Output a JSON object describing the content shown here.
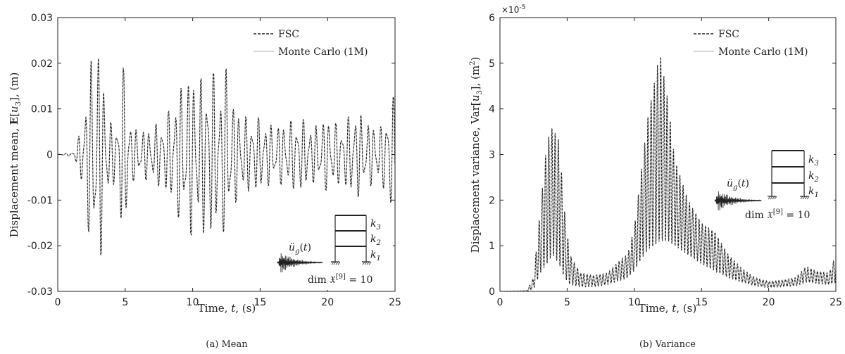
{
  "chart_data": [
    {
      "type": "line",
      "panel": "a",
      "caption": "(a) Mean",
      "xlabel": "Time, t, (s)",
      "ylabel": "Displacement mean, E[u3], (m)",
      "xlim": [
        0,
        25
      ],
      "ylim": [
        -0.03,
        0.03
      ],
      "xticks": [
        "0",
        "5",
        "10",
        "15",
        "20",
        "25"
      ],
      "yticks": [
        "-0.03",
        "-0.02",
        "-0.01",
        "0",
        "0.01",
        "0.02",
        "0.03"
      ],
      "grid": false,
      "legend_position": "top-right",
      "series": [
        {
          "name": "FSC",
          "style": "dashed",
          "color": "#222222"
        },
        {
          "name": "Monte Carlo (1M)",
          "style": "solid",
          "color": "#bbbbbb"
        }
      ],
      "envelope": {
        "t": [
          0,
          1.2,
          1.5,
          2.0,
          2.5,
          2.8,
          3.2,
          3.6,
          4.0,
          4.5,
          4.8,
          5.5,
          6.0,
          7.0,
          8.0,
          8.5,
          9.0,
          9.5,
          10.0,
          10.5,
          11.0,
          11.5,
          12.0,
          12.5,
          13.0,
          14.0,
          15.0,
          16.0,
          17.0,
          18.0,
          19.0,
          20.0,
          21.0,
          22.0,
          23.0,
          24.0,
          24.5,
          25.0
        ],
        "amp": [
          0,
          0.0005,
          0.003,
          0.011,
          0.021,
          0.025,
          0.022,
          0.012,
          0.006,
          0.008,
          0.02,
          0.006,
          0.005,
          0.006,
          0.008,
          0.011,
          0.014,
          0.016,
          0.018,
          0.016,
          0.018,
          0.018,
          0.014,
          0.019,
          0.011,
          0.008,
          0.008,
          0.006,
          0.007,
          0.008,
          0.006,
          0.008,
          0.006,
          0.01,
          0.007,
          0.006,
          0.011,
          0.013
        ]
      },
      "inset": {
        "stiffness_labels": [
          "k3",
          "k2",
          "k1"
        ],
        "excitation_label": "üg(t)",
        "dimension_label": "dim 𝔛[9] = 10"
      }
    },
    {
      "type": "line",
      "panel": "b",
      "caption": "(b) Variance",
      "xlabel": "Time, t, (s)",
      "ylabel": "Displacement variance, Var[u3], (m2)",
      "y_multiplier": "×10-5",
      "xlim": [
        0,
        25
      ],
      "ylim": [
        0,
        6
      ],
      "xticks": [
        "0",
        "5",
        "10",
        "15",
        "20",
        "25"
      ],
      "yticks": [
        "0",
        "1",
        "2",
        "3",
        "4",
        "5",
        "6"
      ],
      "grid": false,
      "legend_position": "top-right",
      "series": [
        {
          "name": "FSC",
          "style": "dashed",
          "color": "#222222"
        },
        {
          "name": "Monte Carlo (1M)",
          "style": "solid",
          "color": "#bbbbbb"
        }
      ],
      "envelope": {
        "t": [
          0,
          2.0,
          2.5,
          3.0,
          3.5,
          3.9,
          4.4,
          4.8,
          5.2,
          6.0,
          7.0,
          8.0,
          9.0,
          9.5,
          10.0,
          10.5,
          11.0,
          11.5,
          11.9,
          12.5,
          13.0,
          14.0,
          15.0,
          16.0,
          17.0,
          18.0,
          19.0,
          20.0,
          21.0,
          22.0,
          22.8,
          23.5,
          24.5,
          25.0
        ],
        "upper": [
          0,
          0.02,
          0.3,
          1.8,
          3.3,
          3.6,
          3.3,
          1.8,
          0.8,
          0.4,
          0.35,
          0.4,
          0.7,
          0.8,
          1.4,
          2.6,
          3.8,
          4.6,
          5.25,
          4.2,
          2.9,
          2.0,
          1.5,
          1.3,
          0.8,
          0.5,
          0.3,
          0.22,
          0.25,
          0.3,
          0.55,
          0.45,
          0.4,
          0.8
        ],
        "lower": [
          0,
          0.0,
          0.05,
          0.4,
          0.6,
          0.8,
          0.6,
          0.3,
          0.15,
          0.1,
          0.1,
          0.15,
          0.25,
          0.3,
          0.45,
          0.7,
          0.9,
          1.0,
          1.1,
          1.1,
          1.0,
          0.8,
          0.6,
          0.45,
          0.3,
          0.2,
          0.12,
          0.08,
          0.1,
          0.12,
          0.2,
          0.18,
          0.15,
          0.2
        ]
      },
      "inset": {
        "stiffness_labels": [
          "k3",
          "k2",
          "k1"
        ],
        "excitation_label": "üg(t)",
        "dimension_label": "dim 𝔛[9] = 10"
      }
    }
  ]
}
